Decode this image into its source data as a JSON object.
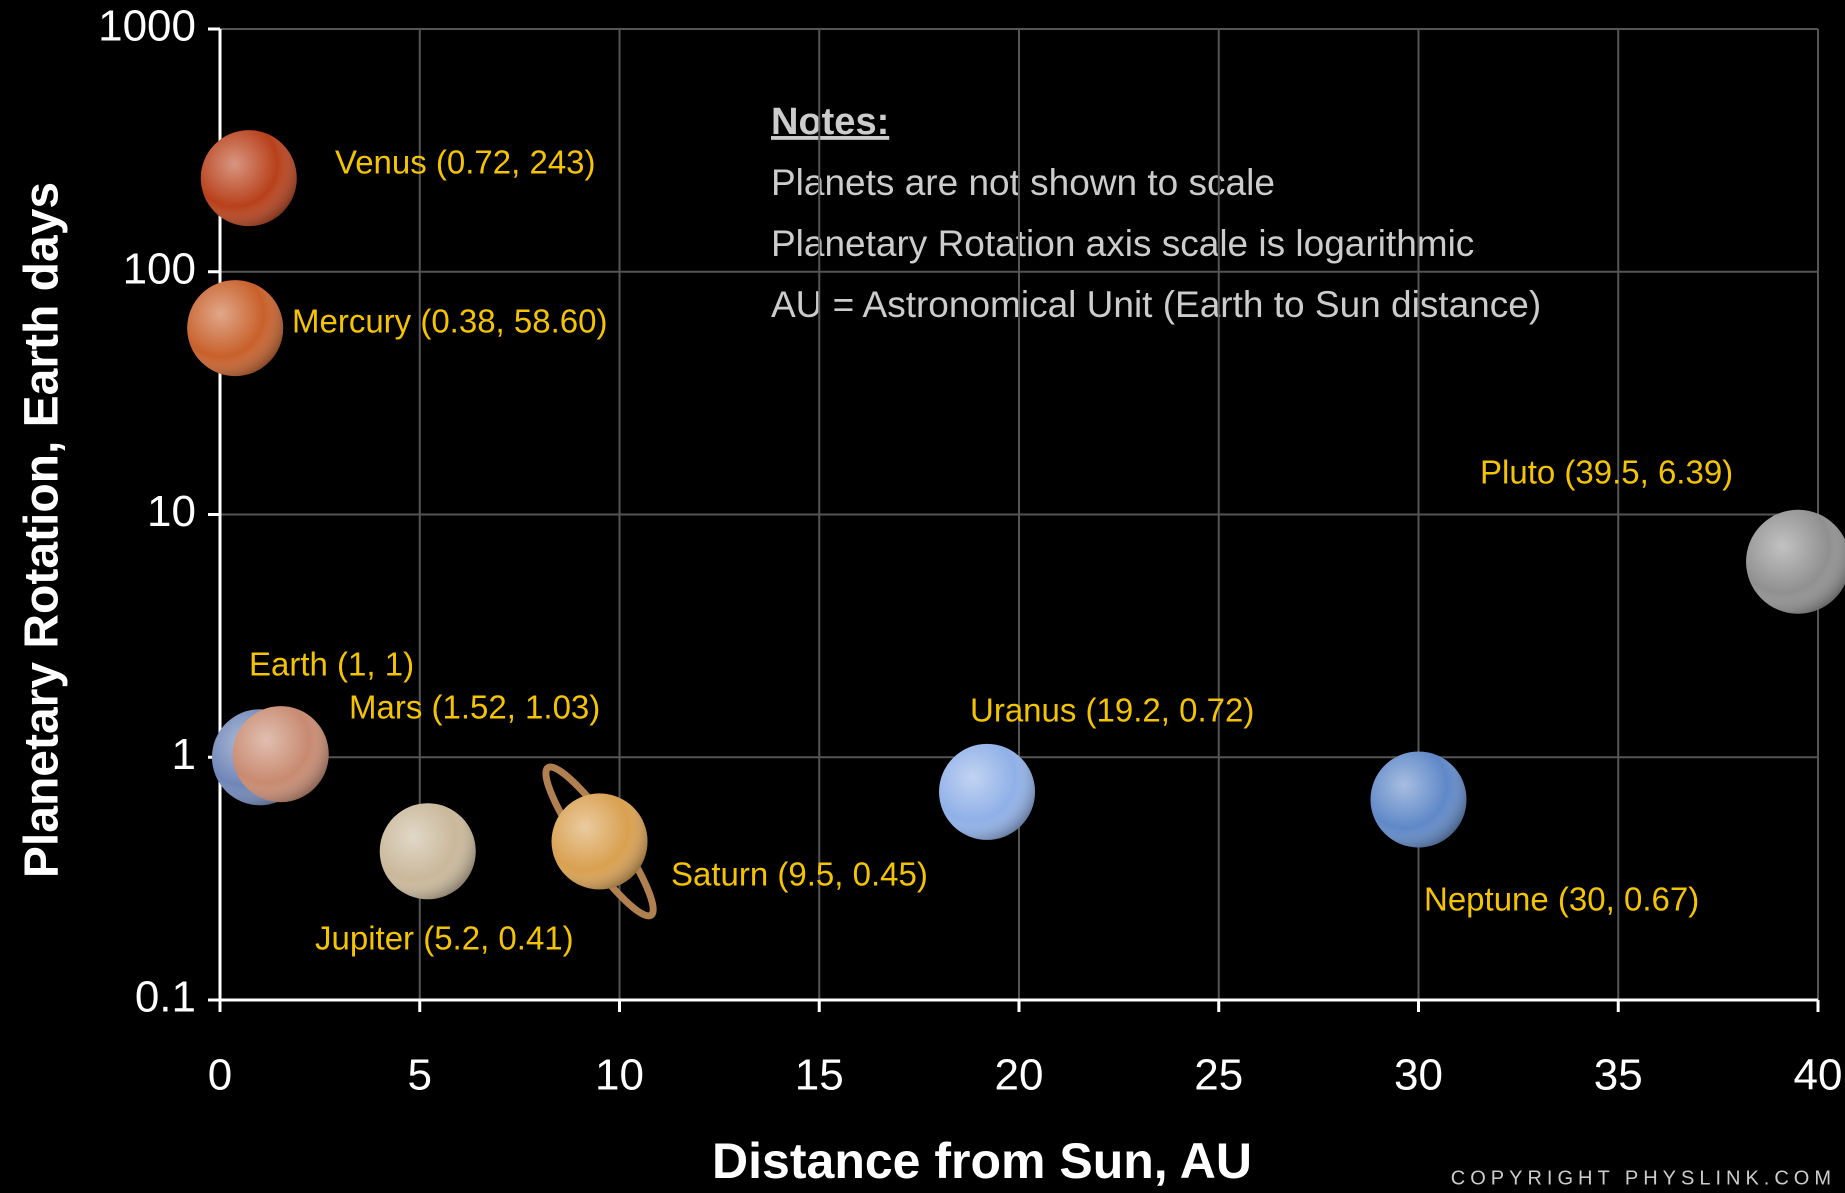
{
  "chart_data": {
    "type": "scatter",
    "x_label": "Distance from Sun, AU",
    "y_label": "Planetary Rotation, Earth days",
    "notes_title": "Notes:",
    "notes": [
      "Planets are not shown to scale",
      "Planetary Rotation axis scale is logarithmic",
      "AU = Astronomical Unit (Earth to Sun distance)"
    ],
    "copyright": "COPYRIGHT PHYSLINK.COM",
    "x": [
      0.38,
      0.72,
      1,
      1.52,
      5.2,
      9.5,
      19.2,
      30,
      39.5
    ],
    "values": [
      58.6,
      243,
      1,
      1.03,
      0.41,
      0.45,
      0.72,
      0.67,
      6.39
    ],
    "point_labels": [
      "Mercury (0.38, 58.60)",
      "Venus (0.72, 243)",
      "Earth (1, 1)",
      "Mars (1.52, 1.03)",
      "Jupiter (5.2, 0.41)",
      "Saturn (9.5, 0.45)",
      "Uranus (19.2, 0.72)",
      "Neptune (30, 0.67)",
      "Pluto (39.5, 6.39)"
    ],
    "colors": [
      "#c8602a",
      "#b8401a",
      "#6f86b8",
      "#c88a70",
      "#c9b89a",
      "#d9a050",
      "#8fb0e8",
      "#5f88c8",
      "#909090"
    ],
    "label_color": "#f5c400",
    "xlim": [
      0,
      40
    ],
    "xticks": [
      0,
      5,
      10,
      15,
      20,
      25,
      30,
      35,
      40
    ],
    "ylim": [
      0.1,
      1000
    ],
    "yticks": [
      0.1,
      1,
      10,
      100,
      1000
    ],
    "y_log": true,
    "grid": true
  }
}
